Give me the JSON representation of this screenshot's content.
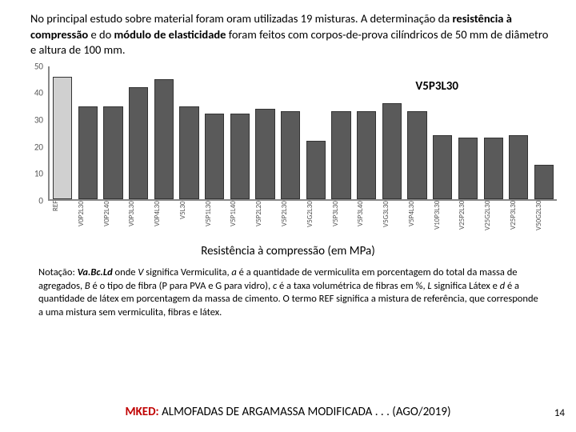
{
  "intro": {
    "prefix": "No principal estudo sobre material foram oram utilizadas 19 misturas. A determinação da ",
    "bold1": "resistência à compressão",
    "mid": " e do ",
    "bold2": "módulo de elasticidade",
    "suffix": " foram feitos com corpos-de-prova cilíndricos de 50 mm de diâmetro e altura de 100 mm."
  },
  "chart": {
    "type": "bar",
    "annotation": "V5P3L30",
    "ylim": [
      0,
      50
    ],
    "ytick_step": 10,
    "yticks": [
      0,
      10,
      20,
      30,
      40,
      50
    ],
    "bar_colors": {
      "ref": "#d0d0d0",
      "normal": "#5a5a5a",
      "border": "#333333"
    },
    "axis_color": "#888888",
    "background_color": "#ffffff",
    "categories": [
      "REF",
      "V0P2L30",
      "V0P2L40",
      "V0P3L30",
      "V0P4L30",
      "V5L30",
      "V5P1L30",
      "V5P1L40",
      "V5P2L20",
      "V5P2L30",
      "V5G2L30",
      "V5P3L30",
      "V5P3L40",
      "V5G3L30",
      "V5P4L30",
      "V10P3L30",
      "V25P2L30",
      "V25G2L30",
      "V25P3L30",
      "V50G2L30"
    ],
    "values": [
      46,
      35,
      35,
      42,
      45,
      35,
      32,
      32,
      34,
      33,
      22,
      33,
      33,
      36,
      33,
      24,
      23,
      23,
      24,
      13
    ],
    "ref_index": 0,
    "label_fontsize": 9,
    "tick_fontsize": 11
  },
  "caption": "Resistência à compressão (em MPa)",
  "notation": {
    "lead": "Notação: ",
    "pattern": "Va.Bc.Ld",
    "part1": " onde ",
    "V": "V",
    "part2": " significa Vermiculita, ",
    "a": "a",
    "part3": " é a quantidade de vermiculita em porcentagem do total da massa de agregados, ",
    "B": "B",
    "part4": " é o tipo de fibra (P para PVA e G para vidro), ",
    "c": "c",
    "part5": " é a taxa volumétrica de fibras em %, ",
    "L": "L",
    "part6": " significa Látex e ",
    "d": "d",
    "part7": " é a quantidade de látex em porcentagem da massa de cimento. O termo REF significa a mistura de referência, que corresponde a uma mistura sem vermiculita, fibras e látex."
  },
  "footer": {
    "mked": "MKED:",
    "rest": " ALMOFADAS DE ARGAMASSA MODIFICADA . . . (AGO/2019)"
  },
  "pagenum": "14"
}
